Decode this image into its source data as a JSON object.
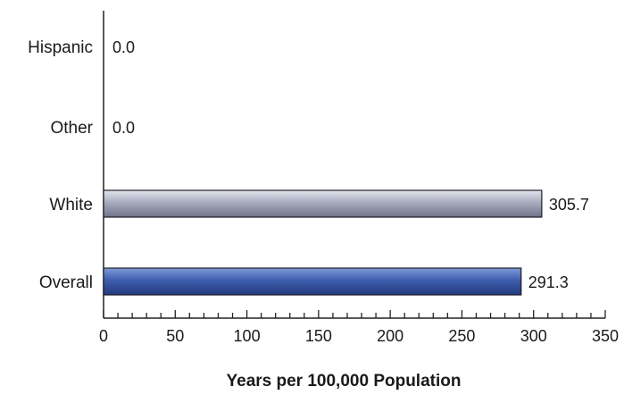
{
  "chart_data": {
    "type": "bar",
    "orientation": "horizontal",
    "categories": [
      "Hispanic",
      "Other",
      "White",
      "Overall"
    ],
    "values": [
      0.0,
      0.0,
      305.7,
      291.3
    ],
    "value_labels": [
      "0.0",
      "0.0",
      "305.7",
      "291.3"
    ],
    "bar_colors": [
      "#9fa3b6",
      "#9fa3b6",
      "#9fa3b6",
      "#3f5fae"
    ],
    "xlabel": "Years per 100,000 Population",
    "xlim": [
      0,
      350
    ],
    "x_ticks": [
      "0",
      "50",
      "100",
      "150",
      "200",
      "250",
      "300",
      "350"
    ],
    "x_tick_values": [
      0,
      50,
      100,
      150,
      200,
      250,
      300,
      350
    ],
    "grid": false,
    "legend": "none"
  }
}
